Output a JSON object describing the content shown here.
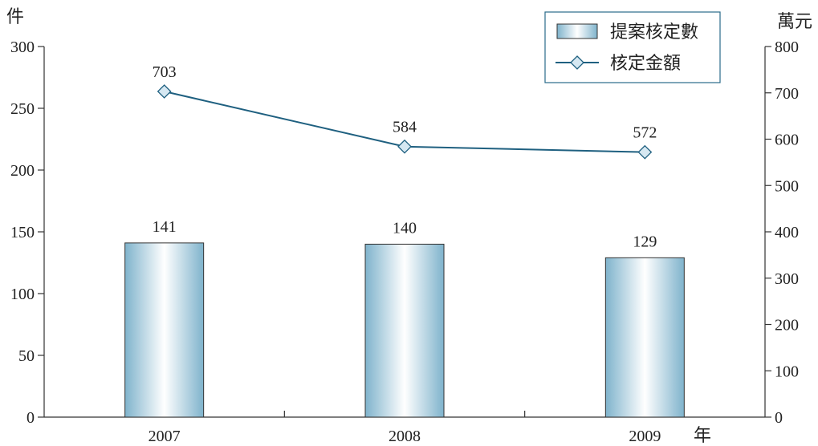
{
  "chart_data": {
    "type": "bar+line",
    "categories": [
      "2007",
      "2008",
      "2009"
    ],
    "xlabel": "年",
    "y_left": {
      "unit": "件",
      "ylim": [
        0,
        300
      ],
      "ticks": [
        "0",
        "50",
        "100",
        "150",
        "200",
        "250",
        "300"
      ]
    },
    "y_right": {
      "unit": "萬元",
      "ylim": [
        0,
        800
      ],
      "ticks": [
        "0",
        "100",
        "200",
        "300",
        "400",
        "500",
        "600",
        "700",
        "800"
      ]
    },
    "series": [
      {
        "name": "提案核定數",
        "type": "bar",
        "axis": "left",
        "values": [
          141,
          140,
          129
        ],
        "labels": [
          "141",
          "140",
          "129"
        ]
      },
      {
        "name": "核定金額",
        "type": "line",
        "axis": "right",
        "values": [
          703,
          584,
          572
        ],
        "labels": [
          "703",
          "584",
          "572"
        ]
      }
    ],
    "legend": {
      "position": "top-right"
    },
    "grid": false,
    "colors": {
      "bar_edge": "#7fb3cc",
      "bar_light": "#ffffff",
      "line": "#1f6080",
      "marker_fill": "#d6e8f2",
      "legend_border": "#2a6a8a"
    }
  }
}
